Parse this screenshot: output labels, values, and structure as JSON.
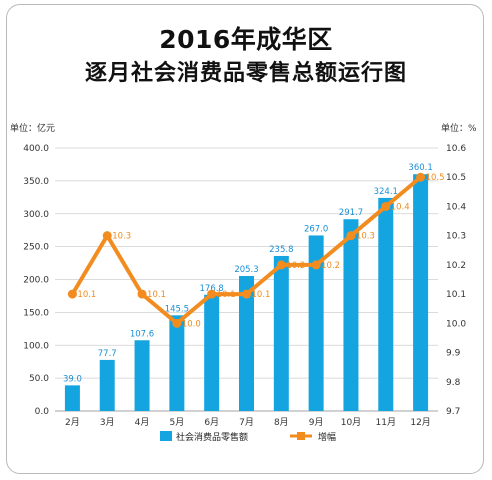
{
  "chart_data": {
    "type": "bar+line",
    "title": "2016年成华区",
    "subtitle": "逐月社会消费品零售总额运行图",
    "categories": [
      "2月",
      "3月",
      "4月",
      "5月",
      "6月",
      "7月",
      "8月",
      "9月",
      "10月",
      "11月",
      "12月"
    ],
    "series": [
      {
        "name": "社会消费品零售额",
        "type": "bar",
        "axis": "left",
        "values": [
          39.0,
          77.7,
          107.6,
          145.5,
          176.8,
          205.3,
          235.8,
          267.0,
          291.7,
          324.1,
          360.1
        ],
        "labels": [
          "39.0",
          "77.7",
          "107.6",
          "145.5",
          "176.8",
          "205.3",
          "235.8",
          "267.0",
          "291.7",
          "324.1",
          "360.1"
        ],
        "color": "#14a5e0"
      },
      {
        "name": "增幅",
        "type": "line",
        "axis": "right",
        "values": [
          10.1,
          10.3,
          10.1,
          10.0,
          10.1,
          10.1,
          10.2,
          10.2,
          10.3,
          10.4,
          10.5
        ],
        "labels": [
          "10.1",
          "10.3",
          "10.1",
          "10.0",
          "10.1",
          "10.1",
          "10.2",
          "10.2",
          "10.3",
          "10.4",
          "10.5"
        ],
        "color": "#f28c1f"
      }
    ],
    "left_axis": {
      "unit": "单位：亿元",
      "ylim": [
        0,
        400
      ],
      "ticks": [
        "0.0",
        "50.0",
        "100.0",
        "150.0",
        "200.0",
        "250.0",
        "300.0",
        "350.0",
        "400.0"
      ]
    },
    "right_axis": {
      "unit": "单位：%",
      "ylim": [
        9.7,
        10.6
      ],
      "ticks": [
        "9.7",
        "9.8",
        "9.9",
        "10.0",
        "10.1",
        "10.2",
        "10.3",
        "10.4",
        "10.5",
        "10.6"
      ]
    },
    "grid": true,
    "legend": "bottom-center"
  }
}
